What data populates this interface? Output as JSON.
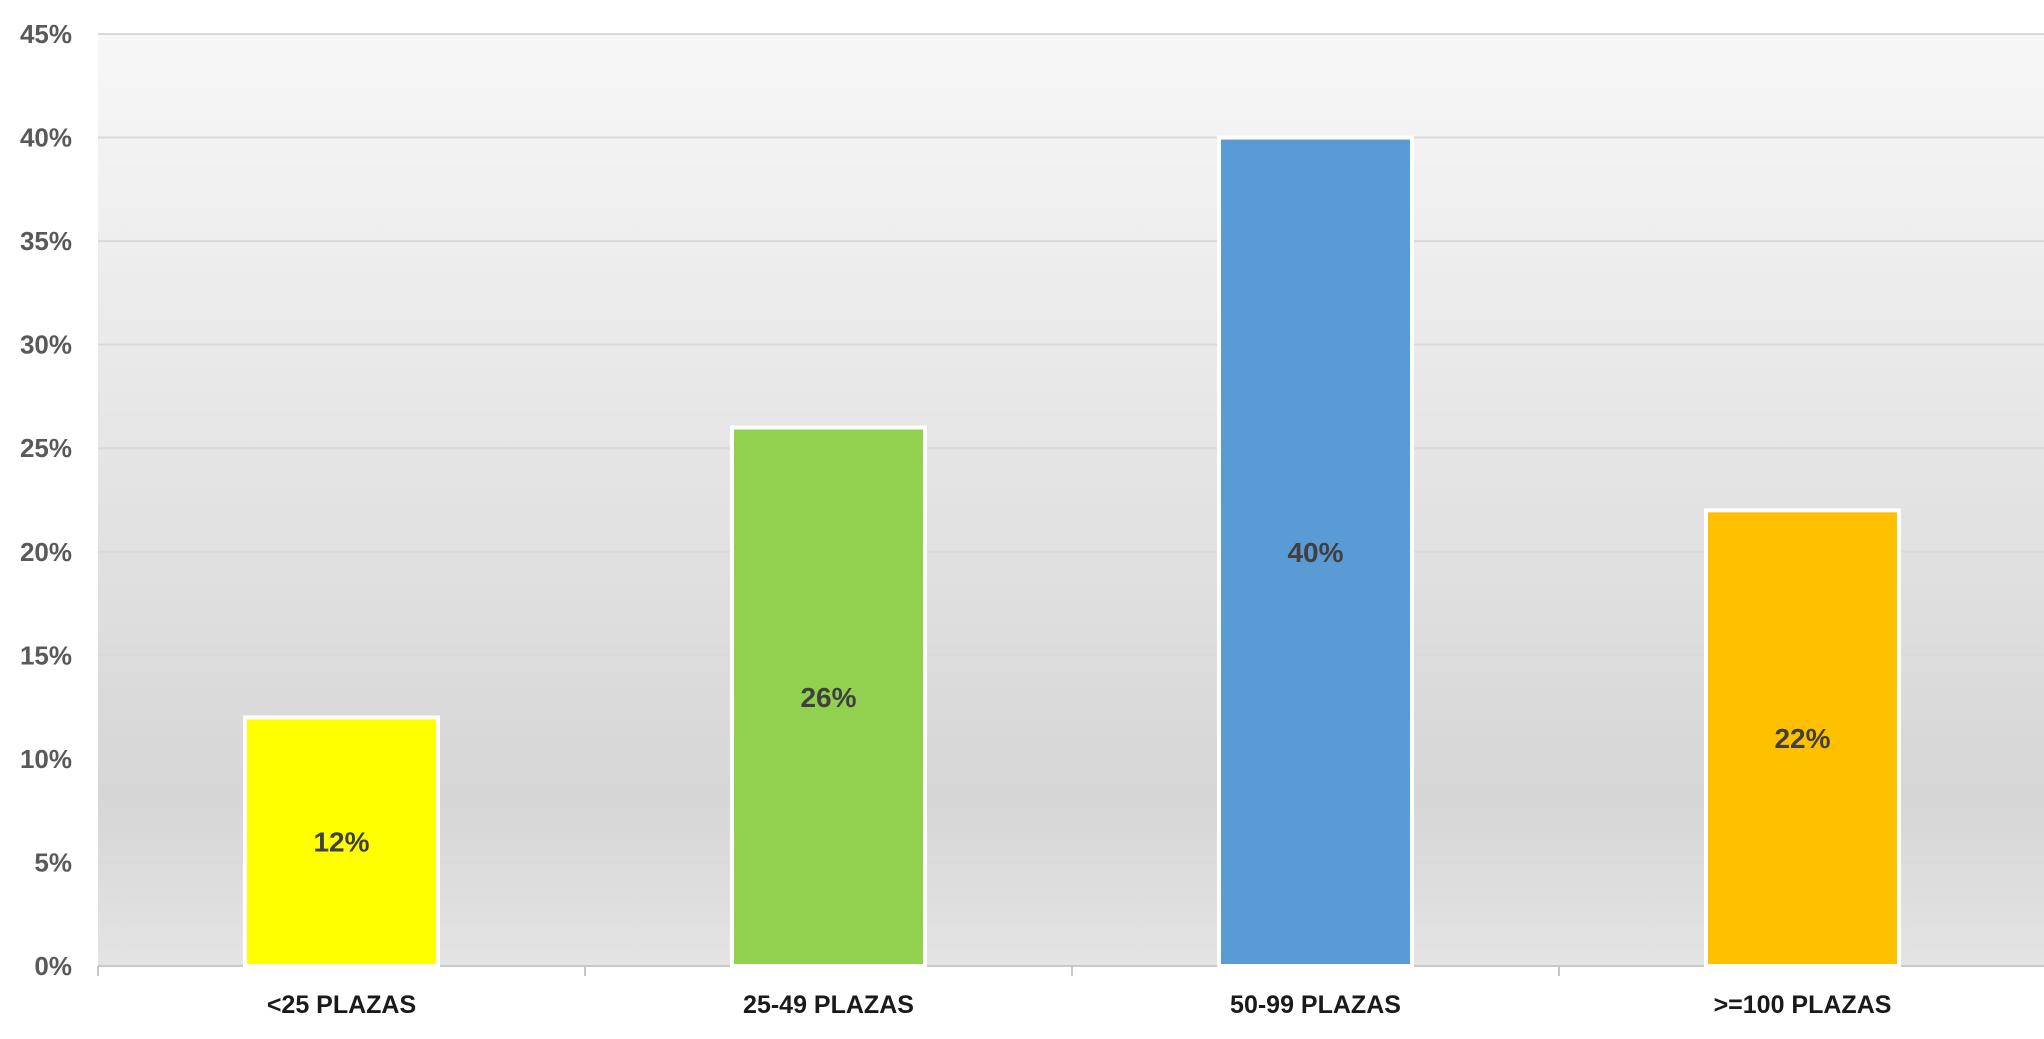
{
  "chart_data": {
    "type": "bar",
    "categories": [
      "<25 PLAZAS",
      "25-49 PLAZAS",
      "50-99 PLAZAS",
      ">=100 PLAZAS"
    ],
    "values": [
      12,
      26,
      40,
      22
    ],
    "value_labels": [
      "12%",
      "26%",
      "40%",
      "22%"
    ],
    "bar_colors": [
      "#ffff00",
      "#92d050",
      "#5b9bd5",
      "#ffc000"
    ],
    "ylim": [
      0,
      45
    ],
    "y_ticks": [
      0,
      5,
      10,
      15,
      20,
      25,
      30,
      35,
      40,
      45
    ],
    "y_tick_labels": [
      "0%",
      "5%",
      "10%",
      "15%",
      "20%",
      "25%",
      "30%",
      "35%",
      "40%",
      "45%"
    ],
    "title": "",
    "xlabel": "",
    "ylabel": "",
    "grid": true,
    "legend": "none"
  }
}
